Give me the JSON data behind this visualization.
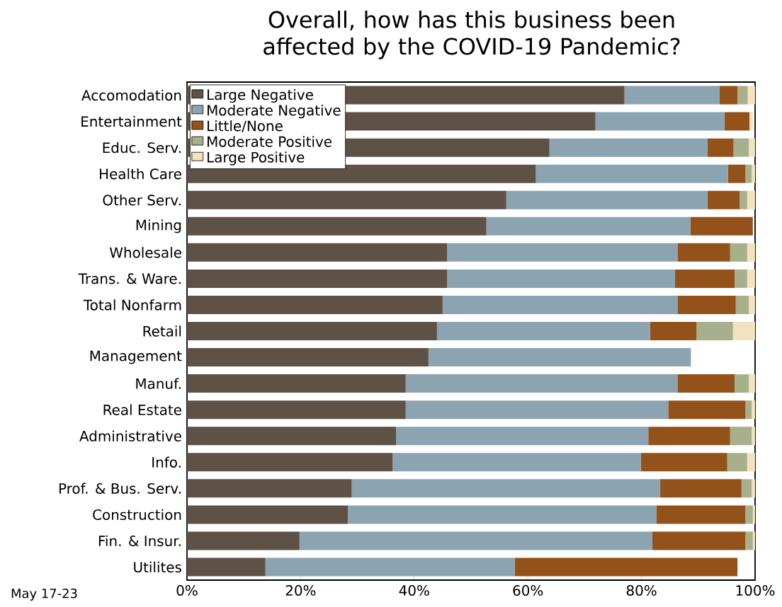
{
  "chart_data": {
    "type": "bar",
    "orientation": "horizontal",
    "stacked": true,
    "title": "Overall, how has this business been affected by the COVID-19 Pandemic?",
    "categories": [
      "Accomodation",
      "Entertainment",
      "Educ. Serv.",
      "Health Care",
      "Other Serv.",
      "Mining",
      "Wholesale",
      "Trans. & Ware.",
      "Total Nonfarm",
      "Retail",
      "Management",
      "Manuf.",
      "Real Estate",
      "Administrative",
      "Info.",
      "Prof. & Bus. Serv.",
      "Construction",
      "Fin. & Insur.",
      "Utilites"
    ],
    "series": [
      {
        "name": "Large Negative",
        "color": "#5e5145",
        "values": [
          77.0,
          71.9,
          63.8,
          61.4,
          56.2,
          52.7,
          45.8,
          45.8,
          45.0,
          44.0,
          42.5,
          38.5,
          38.5,
          36.8,
          36.2,
          29.0,
          28.3,
          19.8,
          13.8
        ]
      },
      {
        "name": "Moderate Negative",
        "color": "#8ca3b2",
        "values": [
          16.7,
          22.7,
          27.8,
          33.8,
          35.4,
          35.9,
          40.6,
          40.1,
          41.4,
          37.5,
          46.2,
          47.9,
          46.2,
          44.4,
          43.7,
          54.3,
          54.3,
          62.1,
          43.9
        ]
      },
      {
        "name": "Little/None",
        "color": "#93521a",
        "values": [
          3.2,
          4.4,
          4.6,
          3.1,
          5.7,
          11.0,
          9.2,
          10.5,
          10.2,
          8.2,
          0,
          10.0,
          13.6,
          14.4,
          15.2,
          14.3,
          15.7,
          16.4,
          39.2
        ]
      },
      {
        "name": "Moderate Positive",
        "color": "#a8af8c",
        "values": [
          1.8,
          0,
          2.7,
          1.1,
          1.3,
          0,
          3.0,
          2.2,
          2.3,
          6.4,
          0,
          2.5,
          1.1,
          3.8,
          3.5,
          1.8,
          1.3,
          1.3,
          0
        ]
      },
      {
        "name": "Large Positive",
        "color": "#f2e2bd",
        "values": [
          1.3,
          0.6,
          1.1,
          0.6,
          1.4,
          0,
          1.4,
          1.4,
          1.1,
          3.9,
          0,
          1.1,
          0.6,
          0.6,
          1.4,
          0.6,
          0.4,
          0.4,
          0
        ]
      }
    ],
    "xlim": [
      0,
      100
    ],
    "xticks": [
      {
        "value": 0,
        "label": "0%"
      },
      {
        "value": 20,
        "label": "20%"
      },
      {
        "value": 40,
        "label": "40%"
      },
      {
        "value": 60,
        "label": "60%"
      },
      {
        "value": 80,
        "label": "80%"
      },
      {
        "value": 100,
        "label": "100%"
      }
    ],
    "legend": "top left",
    "grid": false,
    "annotations": [
      "May 17-23"
    ]
  }
}
